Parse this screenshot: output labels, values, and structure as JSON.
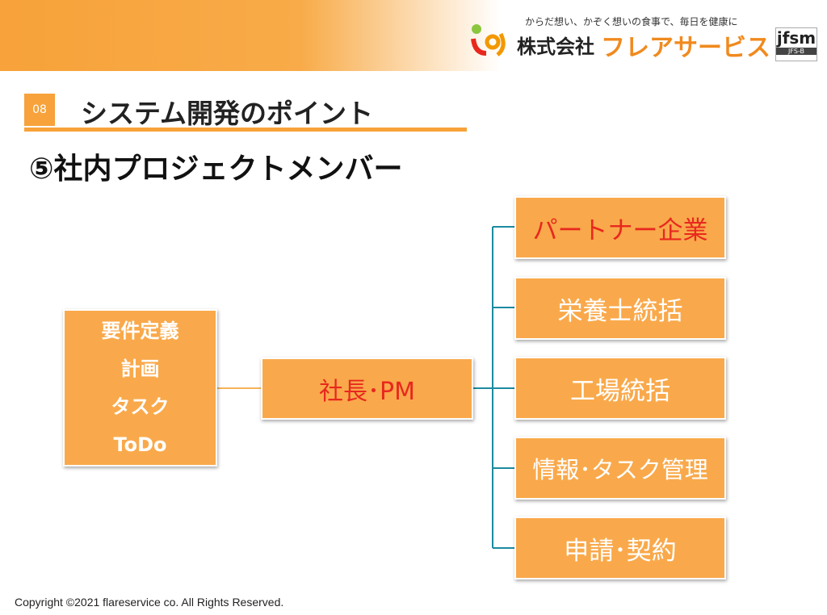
{
  "header": {
    "tagline": "からだ想い、かぞく想いの食事で、毎日を健康に",
    "company_prefix": "株式会社",
    "company_name": "フレアサービス",
    "logo_text": "jfsm",
    "logo_sub": "JFS-B"
  },
  "section": {
    "number": "08",
    "title": "システム開発のポイント"
  },
  "subtitle": "⑤社内プロジェクトメンバー",
  "nodes": {
    "left": [
      "要件定義",
      "計画",
      "タスク",
      "ToDo"
    ],
    "center": "社長･PM",
    "right": [
      "パートナー企業",
      "栄養士統括",
      "工場統括",
      "情報･タスク管理",
      "申請･契約"
    ]
  },
  "footer": "Copyright ©2021 flareservice co. All Rights Reserved."
}
